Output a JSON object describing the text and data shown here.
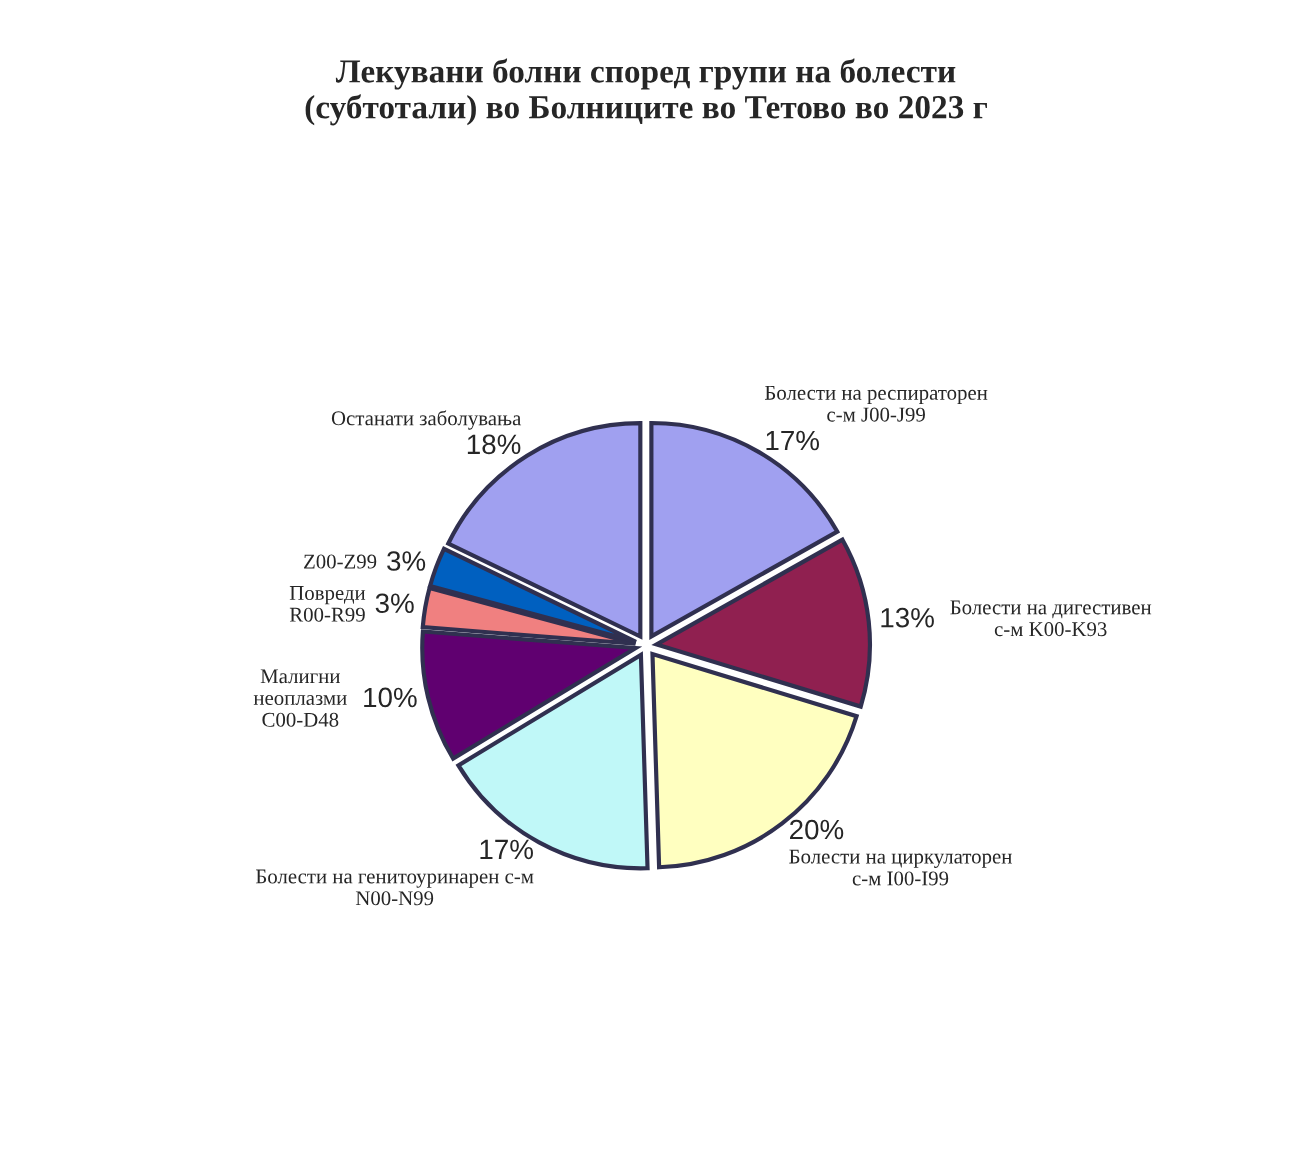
{
  "chart_data": {
    "type": "pie",
    "title": "Лекувани болни според групи на болести\n(субтотали) во Болниците во Тетово во 2023 г",
    "categories": [
      "Болести на респираторен\nс-м J00-J99",
      "Болести на дигестивен\nс-м K00-K93",
      "Болести на циркулаторен\nс-м I00-I99",
      "Болести на генитоуринарен с-м\nN00-N99",
      "Малигни\nнеоплазми\nC00-D48",
      "Повреди\nR00-R99",
      "Z00-Z99",
      "Останати заболувања"
    ],
    "values": [
      17,
      13,
      20,
      17,
      10,
      3,
      3,
      18
    ],
    "colors": [
      "#a0a0f0",
      "#902050",
      "#ffffc0",
      "#c0f8f8",
      "#600070",
      "#f08080",
      "#0060c0",
      "#a0a0f0"
    ],
    "value_labels": [
      "17%",
      "13%",
      "20%",
      "17%",
      "10%",
      "3%",
      "3%",
      "18%"
    ],
    "data_labels": true
  }
}
